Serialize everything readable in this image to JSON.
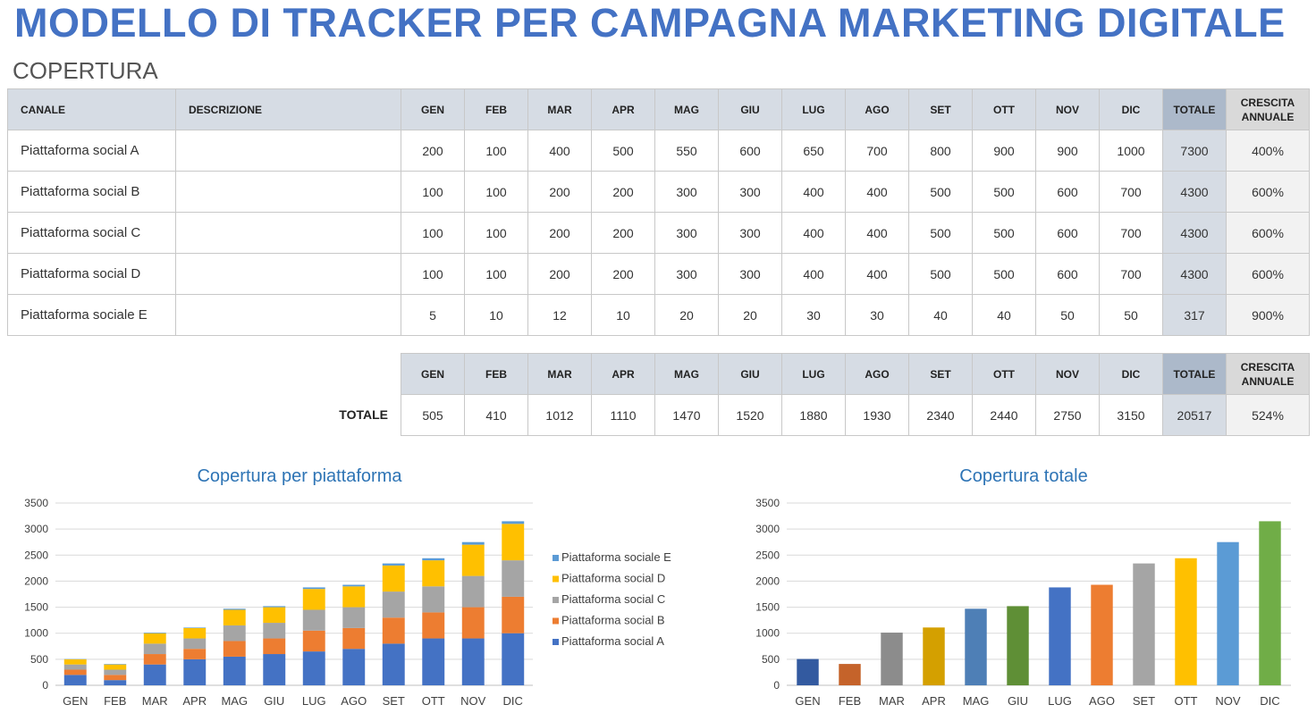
{
  "title": "MODELLO DI TRACKER PER CAMPAGNA MARKETING DIGITALE",
  "subtitle": "COPERTURA",
  "table": {
    "headers": {
      "channel": "CANALE",
      "description": "DESCRIZIONE",
      "months": [
        "GEN",
        "FEB",
        "MAR",
        "APR",
        "MAG",
        "GIU",
        "LUG",
        "AGO",
        "SET",
        "OTT",
        "NOV",
        "DIC"
      ],
      "total": "TOTALE",
      "growth": "CRESCITA ANNUALE"
    },
    "rows": [
      {
        "name": "Piattaforma social A",
        "description": "",
        "values": [
          "200",
          "100",
          "400",
          "500",
          "550",
          "600",
          "650",
          "700",
          "800",
          "900",
          "900",
          "1000"
        ],
        "total": "7300",
        "growth": "400%"
      },
      {
        "name": "Piattaforma social B",
        "description": "",
        "values": [
          "100",
          "100",
          "200",
          "200",
          "300",
          "300",
          "400",
          "400",
          "500",
          "500",
          "600",
          "700"
        ],
        "total": "4300",
        "growth": "600%"
      },
      {
        "name": "Piattaforma social C",
        "description": "",
        "values": [
          "100",
          "100",
          "200",
          "200",
          "300",
          "300",
          "400",
          "400",
          "500",
          "500",
          "600",
          "700"
        ],
        "total": "4300",
        "growth": "600%"
      },
      {
        "name": "Piattaforma social D",
        "description": "",
        "values": [
          "100",
          "100",
          "200",
          "200",
          "300",
          "300",
          "400",
          "400",
          "500",
          "500",
          "600",
          "700"
        ],
        "total": "4300",
        "growth": "600%"
      },
      {
        "name": "Piattaforma sociale E",
        "description": "",
        "values": [
          "5",
          "10",
          "12",
          "10",
          "20",
          "20",
          "30",
          "30",
          "40",
          "40",
          "50",
          "50"
        ],
        "total": "317",
        "growth": "900%"
      }
    ]
  },
  "totals": {
    "label": "TOTALE",
    "values": [
      "505",
      "410",
      "1012",
      "1110",
      "1470",
      "1520",
      "1880",
      "1930",
      "2340",
      "2440",
      "2750",
      "3150"
    ],
    "total": "20517",
    "growth": "524%"
  },
  "chart_data": [
    {
      "type": "bar",
      "stacked": true,
      "title": "Copertura per piattaforma",
      "categories": [
        "GEN",
        "FEB",
        "MAR",
        "APR",
        "MAG",
        "GIU",
        "LUG",
        "AGO",
        "SET",
        "OTT",
        "NOV",
        "DIC"
      ],
      "ylim": [
        0,
        3500
      ],
      "yticks": [
        0,
        500,
        1000,
        1500,
        2000,
        2500,
        3000,
        3500
      ],
      "legend_position": "right",
      "series": [
        {
          "name": "Piattaforma social A",
          "color": "#4472c4",
          "values": [
            200,
            100,
            400,
            500,
            550,
            600,
            650,
            700,
            800,
            900,
            900,
            1000
          ]
        },
        {
          "name": "Piattaforma social B",
          "color": "#ed7d31",
          "values": [
            100,
            100,
            200,
            200,
            300,
            300,
            400,
            400,
            500,
            500,
            600,
            700
          ]
        },
        {
          "name": "Piattaforma social C",
          "color": "#a5a5a5",
          "values": [
            100,
            100,
            200,
            200,
            300,
            300,
            400,
            400,
            500,
            500,
            600,
            700
          ]
        },
        {
          "name": "Piattaforma social D",
          "color": "#ffc000",
          "values": [
            100,
            100,
            200,
            200,
            300,
            300,
            400,
            400,
            500,
            500,
            600,
            700
          ]
        },
        {
          "name": "Piattaforma sociale E",
          "color": "#5b9bd5",
          "values": [
            5,
            10,
            12,
            10,
            20,
            20,
            30,
            30,
            40,
            40,
            50,
            50
          ]
        }
      ]
    },
    {
      "type": "bar",
      "title": "Copertura totale",
      "categories": [
        "GEN",
        "FEB",
        "MAR",
        "APR",
        "MAG",
        "GIU",
        "LUG",
        "AGO",
        "SET",
        "OTT",
        "NOV",
        "DIC"
      ],
      "ylim": [
        0,
        3500
      ],
      "yticks": [
        0,
        500,
        1000,
        1500,
        2000,
        2500,
        3000,
        3500
      ],
      "values": [
        505,
        410,
        1012,
        1110,
        1470,
        1520,
        1880,
        1930,
        2340,
        2440,
        2750,
        3150
      ],
      "colors": [
        "#335aa0",
        "#c5632a",
        "#8c8c8c",
        "#d4a000",
        "#4e7fb6",
        "#5f8f36",
        "#4472c4",
        "#ed7d31",
        "#a5a5a5",
        "#ffc000",
        "#5b9bd5",
        "#70ad47"
      ]
    }
  ]
}
